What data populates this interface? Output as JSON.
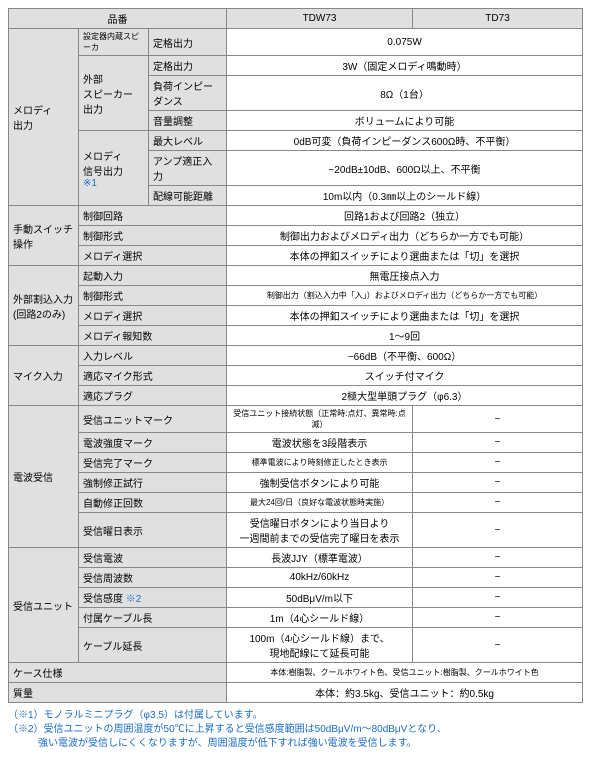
{
  "header": {
    "c0": "品番",
    "c1": "TDW73",
    "c2": "TD73"
  },
  "groups": {
    "melody_out": "メロディ\n出力",
    "manual_sw": "手動スイッチ\n操作",
    "ext_int": "外部割込入力\n(回路2のみ)",
    "mic_in": "マイク入力",
    "radio_rx": "電波受信",
    "rx_unit": "受信ユニット",
    "case_spec": "ケース仕様",
    "mass": "質量"
  },
  "sub": {
    "builtin_spk": "設定器内蔵スピーカ",
    "ext_spk": "外部\nスピーカー\n出力",
    "sig_out": "メロディ\n信号出力\n",
    "sig_out_note": "※1",
    "rated_out": "定格出力",
    "load_imp": "負荷インピーダンス",
    "vol_adj": "音量調整",
    "max_lvl": "最大レベル",
    "amp_in": "アンプ適正入力",
    "cable_dist": "配線可能距離",
    "ctrl_circuit": "制御回路",
    "ctrl_form": "制御形式",
    "melody_sel": "メロディ選択",
    "trigger_in": "起動入力",
    "melody_cnt": "メロディ報知数",
    "in_level": "入力レベル",
    "mic_type": "適応マイク形式",
    "plug": "適応プラグ",
    "rx_unit_mark": "受信ユニットマーク",
    "wave_str_mark": "電波強度マーク",
    "rx_done_mark": "受信完了マーク",
    "force_corr": "強制修正試行",
    "auto_corr": "自動修正回数",
    "rx_day_disp": "受信曜日表示",
    "rx_wave": "受信電波",
    "rx_freq": "受信周波数",
    "rx_sens": "受信感度 ",
    "rx_sens_note": "※2",
    "cable_len": "付属ケーブル長",
    "cable_ext": "ケーブル延長"
  },
  "val": {
    "rated_out1": "0.075W",
    "rated_out2": "3W（固定メロディ鳴動時）",
    "load_imp": "8Ω（1台）",
    "vol_adj": "ボリュームにより可能",
    "max_lvl": "0dB可変（負荷インピーダンス600Ω時、不平衡）",
    "amp_in": "−20dB±10dB、600Ω以上、不平衡",
    "cable_dist": "10m以内（0.3㎜以上のシールド線）",
    "ctrl_circuit": "回路1および回路2（独立）",
    "ctrl_form1": "制御出力およびメロディ出力（どちらか一方でも可能）",
    "melody_sel1": "本体の押釦スイッチにより選曲または「切」を選択",
    "trigger_in": "無電圧接点入力",
    "ctrl_form2": "制御出力（割込入力中「入」）およびメロディ出力（どちらか一方でも可能）",
    "melody_sel2": "本体の押釦スイッチにより選曲または「切」を選択",
    "melody_cnt": "1〜9回",
    "in_level": "−66dB（不平衡、600Ω）",
    "mic_type": "スイッチ付マイク",
    "plug": "2極大型単頭プラグ（φ6.3）",
    "rx_unit_mark": "受信ユニット接続状態（正常時:点灯、異常時:点滅）",
    "wave_str_mark": "電波状態を3段階表示",
    "rx_done_mark": "標準電波により時刻修正したとき表示",
    "force_corr": "強制受信ボタンにより可能",
    "auto_corr": "最大24回/日（良好な電波状態時実施）",
    "rx_day_disp": "受信曜日ボタンにより当日より\n一週間前までの受信完了曜日を表示",
    "rx_wave": "長波JJY（標準電波）",
    "rx_freq": "40kHz/60kHz",
    "rx_sens": "50dBμV/m以下",
    "cable_len": "1m（4心シールド線）",
    "cable_ext": "100m（4心シールド線）まで、\n現地配線にて延長可能",
    "case_spec": "本体:樹脂製、クールホワイト色、受信ユニット:樹脂製、クールホワイト色",
    "mass": "本体：約3.5kg、受信ユニット：約0.5kg",
    "dash": "−"
  },
  "notes": {
    "n1": "（※1）モノラルミニプラグ（φ3.5）は付属しています。",
    "n2": "（※2）受信ユニットの周囲温度が50℃に上昇すると受信感度範囲は50dBμV/m〜80dBμVとなり、\n　　　強い電波が受信しにくくなりますが、周囲温度が低下すれば強い電波を受信します。"
  }
}
